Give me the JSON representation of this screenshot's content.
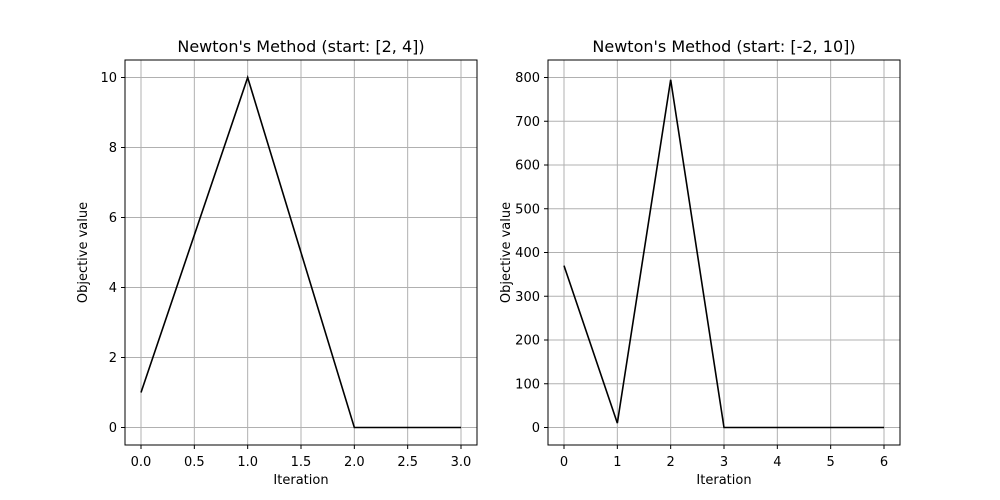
{
  "chart_data": [
    {
      "type": "line",
      "title": "Newton's Method (start: [2, 4])",
      "xlabel": "Iteration",
      "ylabel": "Objective value",
      "xlim": [
        -0.15,
        3.15
      ],
      "ylim": [
        -0.5,
        10.5
      ],
      "xticks": [
        0.0,
        0.5,
        1.0,
        1.5,
        2.0,
        2.5,
        3.0
      ],
      "xtick_labels": [
        "0.0",
        "0.5",
        "1.0",
        "1.5",
        "2.0",
        "2.5",
        "3.0"
      ],
      "yticks": [
        0,
        2,
        4,
        6,
        8,
        10
      ],
      "ytick_labels": [
        "0",
        "2",
        "4",
        "6",
        "8",
        "10"
      ],
      "grid": true,
      "legend": "none",
      "line_color": "#000000",
      "series": [
        {
          "x": [
            0,
            1,
            2,
            3
          ],
          "values": [
            1,
            10,
            0,
            0
          ]
        }
      ]
    },
    {
      "type": "line",
      "title": "Newton's Method (start: [-2, 10])",
      "xlabel": "Iteration",
      "ylabel": "Objective value",
      "xlim": [
        -0.3,
        6.3
      ],
      "ylim": [
        -40,
        840
      ],
      "xticks": [
        0,
        1,
        2,
        3,
        4,
        5,
        6
      ],
      "xtick_labels": [
        "0",
        "1",
        "2",
        "3",
        "4",
        "5",
        "6"
      ],
      "yticks": [
        0,
        100,
        200,
        300,
        400,
        500,
        600,
        700,
        800
      ],
      "ytick_labels": [
        "0",
        "100",
        "200",
        "300",
        "400",
        "500",
        "600",
        "700",
        "800"
      ],
      "grid": true,
      "legend": "none",
      "line_color": "#000000",
      "series": [
        {
          "x": [
            0,
            1,
            2,
            3,
            4,
            5,
            6
          ],
          "values": [
            370,
            10,
            795,
            0,
            0,
            0,
            0
          ]
        }
      ]
    }
  ]
}
